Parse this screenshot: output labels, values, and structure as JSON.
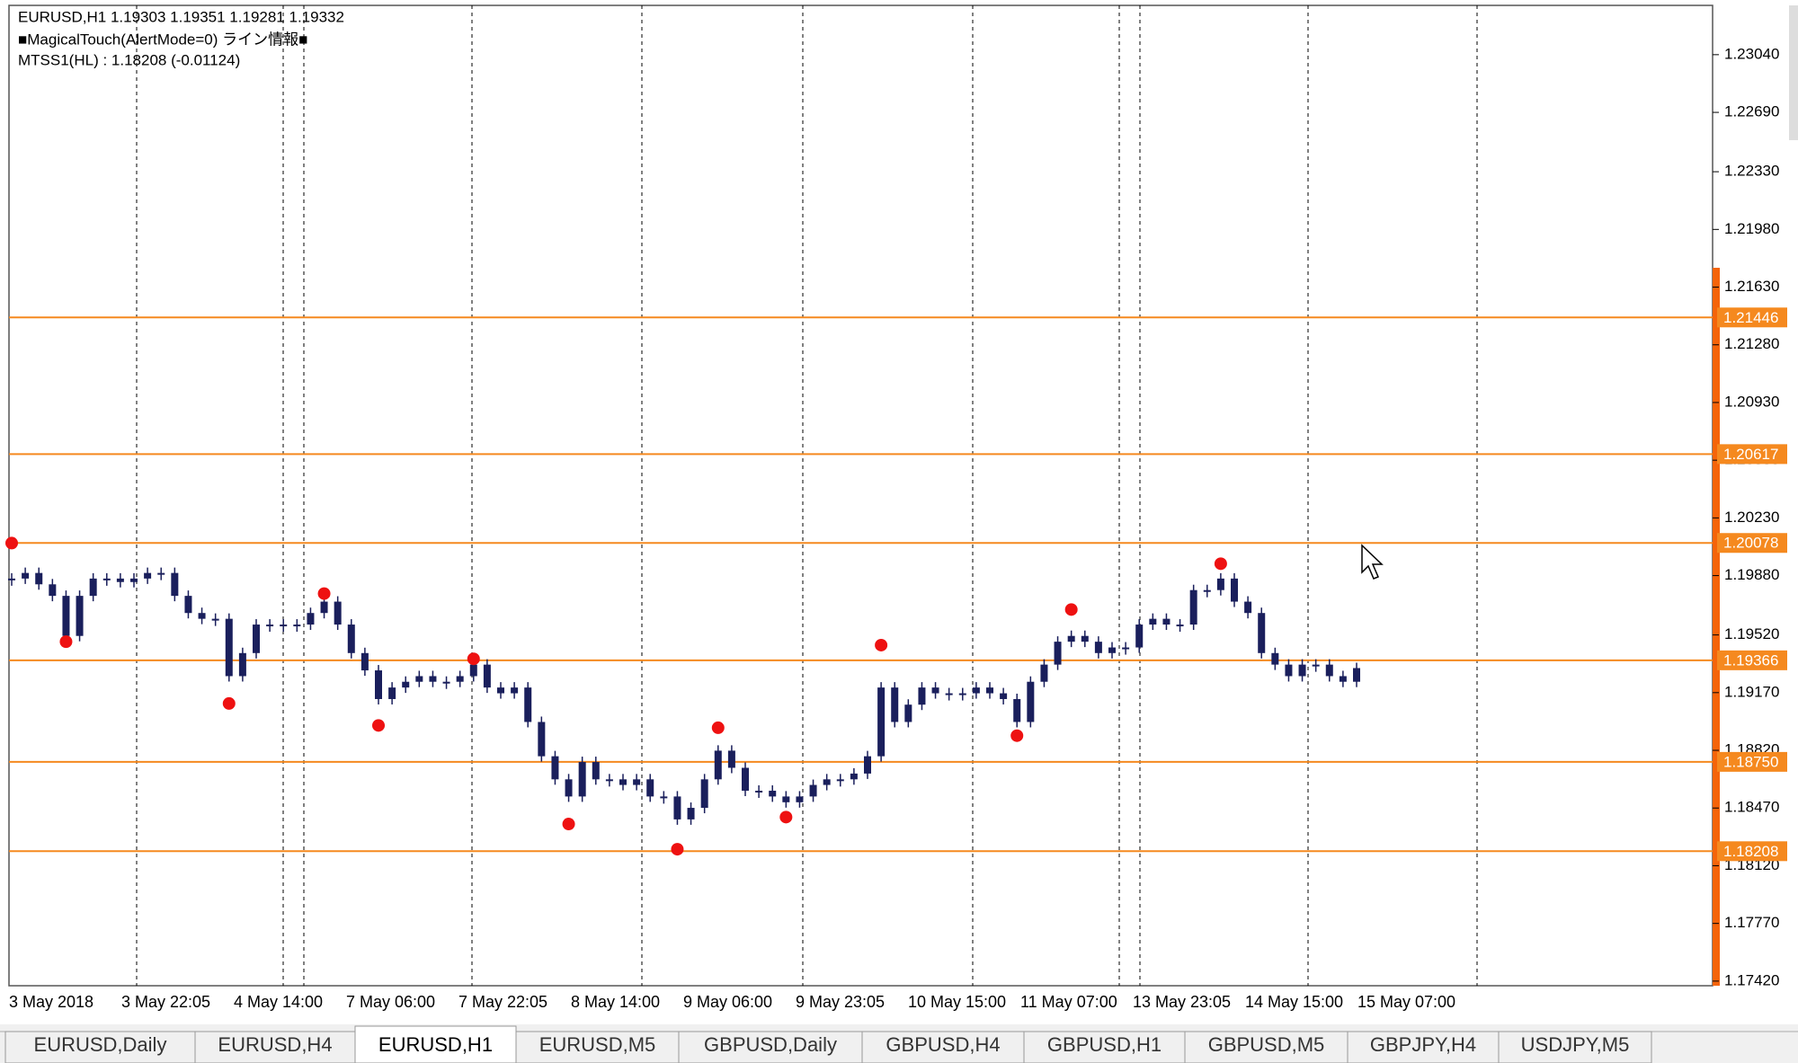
{
  "header": {
    "symbol_line": "EURUSD,H1  1.19303 1.19351 1.19281 1.19332",
    "indicator_line": "■MagicalTouch(AlertMode=0) ライン情報■",
    "mtss_line": "MTSS1(HL) : 1.18208 (-0.01124)"
  },
  "chart_data": {
    "type": "candlestick",
    "closes": [
      1.19862,
      1.19896,
      1.19827,
      1.19757,
      1.19514,
      1.19757,
      1.19862,
      1.19862,
      1.19841,
      1.19862,
      1.19896,
      1.19896,
      1.19757,
      1.19653,
      1.19618,
      1.19618,
      1.1927,
      1.1941,
      1.19583,
      1.19583,
      1.19583,
      1.19583,
      1.19653,
      1.19722,
      1.19583,
      1.1941,
      1.19305,
      1.19131,
      1.19201,
      1.19236,
      1.1927,
      1.19236,
      1.19236,
      1.1927,
      1.1934,
      1.19201,
      1.19166,
      1.19201,
      1.18992,
      1.18784,
      1.18644,
      1.1854,
      1.18749,
      1.18644,
      1.18644,
      1.1861,
      1.18644,
      1.1854,
      1.1854,
      1.18401,
      1.18471,
      1.18644,
      1.18818,
      1.18714,
      1.18575,
      1.18575,
      1.1854,
      1.18505,
      1.1854,
      1.1861,
      1.18644,
      1.18644,
      1.18679,
      1.18784,
      1.19201,
      1.18992,
      1.19097,
      1.19201,
      1.19166,
      1.19166,
      1.19166,
      1.19201,
      1.19166,
      1.19131,
      1.18992,
      1.19236,
      1.1934,
      1.19479,
      1.19514,
      1.19479,
      1.1941,
      1.19444,
      1.19444,
      1.19583,
      1.19618,
      1.19583,
      1.19583,
      1.19792,
      1.19792,
      1.19862,
      1.19722,
      1.19653,
      1.1941,
      1.1934,
      1.1927,
      1.1934,
      1.1934,
      1.1927,
      1.19236,
      1.19319
    ],
    "pivots": [
      1.20077,
      null,
      null,
      null,
      1.19479,
      null,
      null,
      null,
      null,
      null,
      null,
      null,
      null,
      null,
      null,
      null,
      1.19104,
      null,
      null,
      null,
      null,
      null,
      null,
      1.19771,
      null,
      null,
      null,
      1.18971,
      null,
      null,
      null,
      null,
      null,
      null,
      1.19375,
      null,
      null,
      null,
      null,
      null,
      null,
      1.18373,
      null,
      null,
      null,
      null,
      null,
      null,
      null,
      1.1822,
      null,
      null,
      1.18957,
      null,
      null,
      null,
      null,
      1.18415,
      null,
      null,
      null,
      null,
      null,
      null,
      1.19458,
      null,
      null,
      null,
      null,
      null,
      null,
      null,
      null,
      null,
      1.18909,
      null,
      null,
      null,
      1.19674,
      null,
      null,
      null,
      null,
      null,
      null,
      null,
      null,
      null,
      null,
      1.19952,
      null,
      null,
      null,
      null,
      null,
      null,
      null,
      null,
      null,
      null
    ],
    "candle_color": "#1a1f5c",
    "pivot_color": "#ee1111",
    "line_color": "#f5891f",
    "ylim": [
      1.17392,
      1.23339
    ],
    "yticks": [
      {
        "value": 1.2304,
        "label": "1.23040"
      },
      {
        "value": 1.2269,
        "label": "1.22690"
      },
      {
        "value": 1.2233,
        "label": "1.22330"
      },
      {
        "value": 1.2198,
        "label": "1.21980"
      },
      {
        "value": 1.2163,
        "label": "1.21630"
      },
      {
        "value": 1.2128,
        "label": "1.21280"
      },
      {
        "value": 1.2093,
        "label": "1.20930"
      },
      {
        "value": 1.2058,
        "label": "1.20580"
      },
      {
        "value": 1.2023,
        "label": "1.20230"
      },
      {
        "value": 1.1988,
        "label": "1.19880"
      },
      {
        "value": 1.1952,
        "label": "1.19520"
      },
      {
        "value": 1.1917,
        "label": "1.19170"
      },
      {
        "value": 1.1882,
        "label": "1.18820"
      },
      {
        "value": 1.1847,
        "label": "1.18470"
      },
      {
        "value": 1.1812,
        "label": "1.18120"
      },
      {
        "value": 1.1777,
        "label": "1.17770"
      },
      {
        "value": 1.1742,
        "label": "1.17420"
      }
    ],
    "hlines": [
      1.21446,
      1.20617,
      1.20078,
      1.19366,
      {
        "value": 1.1875,
        "label": "1.18750"
      },
      1.18208
    ],
    "x_labels": [
      "3 May 2018",
      "3 May 22:05",
      "4 May 14:00",
      "7 May 06:00",
      "7 May 22:05",
      "8 May 14:00",
      "9 May 06:00",
      "9 May 23:05",
      "10 May 15:00",
      "11 May 07:00",
      "13 May 23:05",
      "14 May 15:00",
      "15 May 07:00"
    ]
  },
  "tabs": [
    "EURUSD,Daily",
    "EURUSD,H4",
    "EURUSD,H1",
    "EURUSD,M5",
    "GBPUSD,Daily",
    "GBPUSD,H4",
    "GBPUSD,H1",
    "GBPUSD,M5",
    "GBPJPY,H4",
    "USDJPY,M5"
  ],
  "active_tab": 2
}
